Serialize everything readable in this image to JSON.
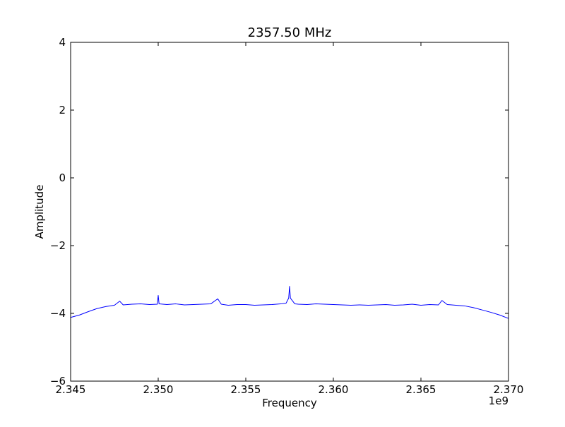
{
  "chart_data": {
    "type": "line",
    "title": "2357.50 MHz",
    "xlabel": "Frequency",
    "ylabel": "Amplitude",
    "x_offset_label": "1e9",
    "xlim": [
      2.345,
      2.37
    ],
    "ylim": [
      -6,
      4
    ],
    "x_ticks": [
      2.345,
      2.35,
      2.355,
      2.36,
      2.365,
      2.37
    ],
    "x_tick_labels": [
      "2.345",
      "2.350",
      "2.355",
      "2.360",
      "2.365",
      "2.370"
    ],
    "y_ticks": [
      4,
      2,
      0,
      -2,
      -4,
      -6
    ],
    "y_tick_labels": [
      "4",
      "2",
      "0",
      "−2",
      "−4",
      "−6"
    ],
    "grid": false,
    "legend": "none",
    "series": [
      {
        "color": "#0000ff",
        "x": [
          2.345,
          2.3455,
          2.346,
          2.3465,
          2.347,
          2.3475,
          2.3478,
          2.348,
          2.3485,
          2.349,
          2.3495,
          2.34995,
          2.35,
          2.35005,
          2.3505,
          2.351,
          2.3515,
          2.352,
          2.3525,
          2.353,
          2.3534,
          2.3536,
          2.354,
          2.3545,
          2.355,
          2.3555,
          2.356,
          2.3565,
          2.357,
          2.3573,
          2.35745,
          2.3575,
          2.35755,
          2.3578,
          2.358,
          2.3585,
          2.359,
          2.3595,
          2.36,
          2.3605,
          2.361,
          2.3615,
          2.362,
          2.3625,
          2.363,
          2.3635,
          2.364,
          2.3645,
          2.365,
          2.3655,
          2.366,
          2.3662,
          2.3665,
          2.367,
          2.3675,
          2.368,
          2.3685,
          2.369,
          2.3695,
          2.37
        ],
        "y": [
          -4.12,
          -4.05,
          -3.95,
          -3.86,
          -3.8,
          -3.76,
          -3.64,
          -3.75,
          -3.73,
          -3.72,
          -3.74,
          -3.73,
          -3.47,
          -3.72,
          -3.74,
          -3.72,
          -3.75,
          -3.74,
          -3.73,
          -3.72,
          -3.57,
          -3.73,
          -3.76,
          -3.74,
          -3.74,
          -3.76,
          -3.75,
          -3.74,
          -3.72,
          -3.7,
          -3.55,
          -3.2,
          -3.55,
          -3.72,
          -3.73,
          -3.74,
          -3.72,
          -3.73,
          -3.74,
          -3.75,
          -3.76,
          -3.75,
          -3.76,
          -3.75,
          -3.74,
          -3.76,
          -3.75,
          -3.73,
          -3.76,
          -3.74,
          -3.75,
          -3.62,
          -3.74,
          -3.76,
          -3.78,
          -3.83,
          -3.9,
          -3.97,
          -4.05,
          -4.15
        ]
      }
    ]
  }
}
